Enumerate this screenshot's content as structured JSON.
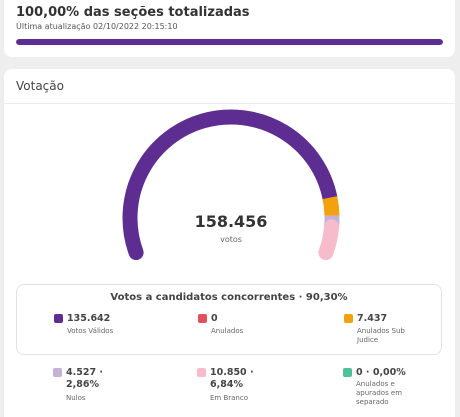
{
  "status": {
    "title": "100,00% das seções totalizadas",
    "updated": "Última atualização 02/10/2022 20:15:10",
    "progress_percent": 100
  },
  "votacao": {
    "title": "Votação",
    "total_value": "158.456",
    "total_label": "votos",
    "box_title": "Votos a candidatos concorrentes · 90,30%"
  },
  "gauge_segments": [
    {
      "key": "validos",
      "fraction": 0.856,
      "color": "#5e2d91"
    },
    {
      "key": "anulados",
      "fraction": 0.0,
      "color": "#e0505e"
    },
    {
      "key": "sub_judice",
      "fraction": 0.0469,
      "color": "#f2a20f"
    },
    {
      "key": "nulos",
      "fraction": 0.0286,
      "color": "#c2b3d4"
    },
    {
      "key": "branco",
      "fraction": 0.0684,
      "color": "#f7bccb"
    },
    {
      "key": "separado",
      "fraction": 0.0,
      "color": "#4fc19b"
    }
  ],
  "legend": {
    "validos": {
      "value": "135.642",
      "label": "Votos Válidos",
      "color": "#5e2d91"
    },
    "anulados": {
      "value": "0",
      "label": "Anulados",
      "color": "#e0505e"
    },
    "sub_judice": {
      "value": "7.437",
      "label": "Anulados Sub Judice",
      "color": "#f2a20f"
    },
    "nulos": {
      "value": "4.527 · 2,86%",
      "label": "Nulos",
      "color": "#c2b3d4"
    },
    "branco": {
      "value": "10.850 · 6,84%",
      "label": "Em Branco",
      "color": "#f7bccb"
    },
    "separado": {
      "value": "0 · 0,00%",
      "label": "Anulados e apurados em separado",
      "color": "#4fc19b"
    }
  }
}
